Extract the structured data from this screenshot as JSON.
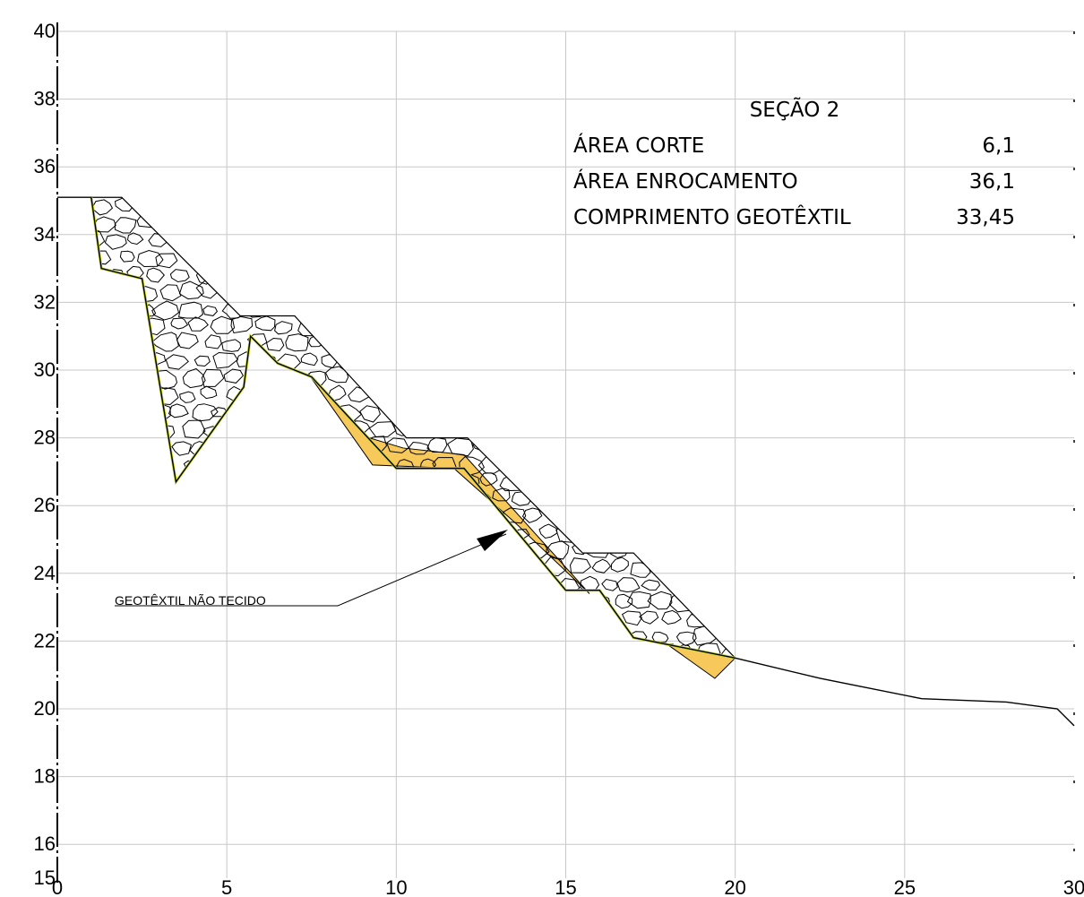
{
  "info_table": {
    "title": "SEÇÃO 2",
    "rows": [
      {
        "label": "ÁREA CORTE",
        "value": "6,1"
      },
      {
        "label": "ÁREA ENROCAMENTO",
        "value": "36,1"
      },
      {
        "label": "COMPRIMENTO GEOTÊXTIL",
        "value": "33,45"
      }
    ]
  },
  "callout": {
    "label": "GEOTÊXTIL NÃO TECIDO"
  },
  "chart_data": {
    "type": "line",
    "title": "",
    "xlabel": "",
    "ylabel": "",
    "xlim": [
      0,
      30
    ],
    "ylim": [
      15,
      40
    ],
    "x_ticks": [
      "0",
      "5",
      "10",
      "15",
      "20",
      "25",
      "30"
    ],
    "y_ticks": [
      "15",
      "16",
      "18",
      "20",
      "22",
      "24",
      "26",
      "28",
      "30",
      "32",
      "34",
      "36",
      "38",
      "40"
    ],
    "grid": true,
    "colors": {
      "rock_outline": "#000000",
      "geotextile": "#c9d63a",
      "cut_fill": "#f7c85a",
      "grid": "#c8c8c8"
    },
    "series": [
      {
        "x": [
          0,
          1,
          1.3,
          2.5,
          3.5,
          5.5,
          5.7,
          6.5,
          7.5,
          10,
          11,
          12,
          15,
          16,
          17,
          18,
          20,
          22.5,
          25.5,
          28,
          29.5,
          30
        ],
        "y": [
          35.1,
          35.1,
          33,
          32.7,
          26.7,
          29.5,
          31,
          30.2,
          29.8,
          27.1,
          27.1,
          27.1,
          23.5,
          23.5,
          22.1,
          21.9,
          21.5,
          20.9,
          20.3,
          20.2,
          20,
          19.5
        ]
      }
    ],
    "rockfill": {
      "x": [
        1,
        1.9,
        5.4,
        7,
        10.3,
        12.1,
        15.5,
        17,
        20
      ],
      "y": [
        35.1,
        35.1,
        31.6,
        31.6,
        28,
        28,
        24.6,
        24.6,
        21.5
      ]
    },
    "cut_zones": [
      {
        "x": [
          7.4,
          9.2,
          10.2,
          12,
          15.7,
          13.5,
          11.7,
          9.3
        ],
        "y": [
          29.9,
          28,
          27.7,
          27.5,
          23.4,
          25.5,
          27.1,
          27.2
        ]
      },
      {
        "x": [
          18,
          20,
          19.4
        ],
        "y": [
          21.9,
          21.5,
          20.9
        ]
      }
    ],
    "rock_count": 180
  }
}
